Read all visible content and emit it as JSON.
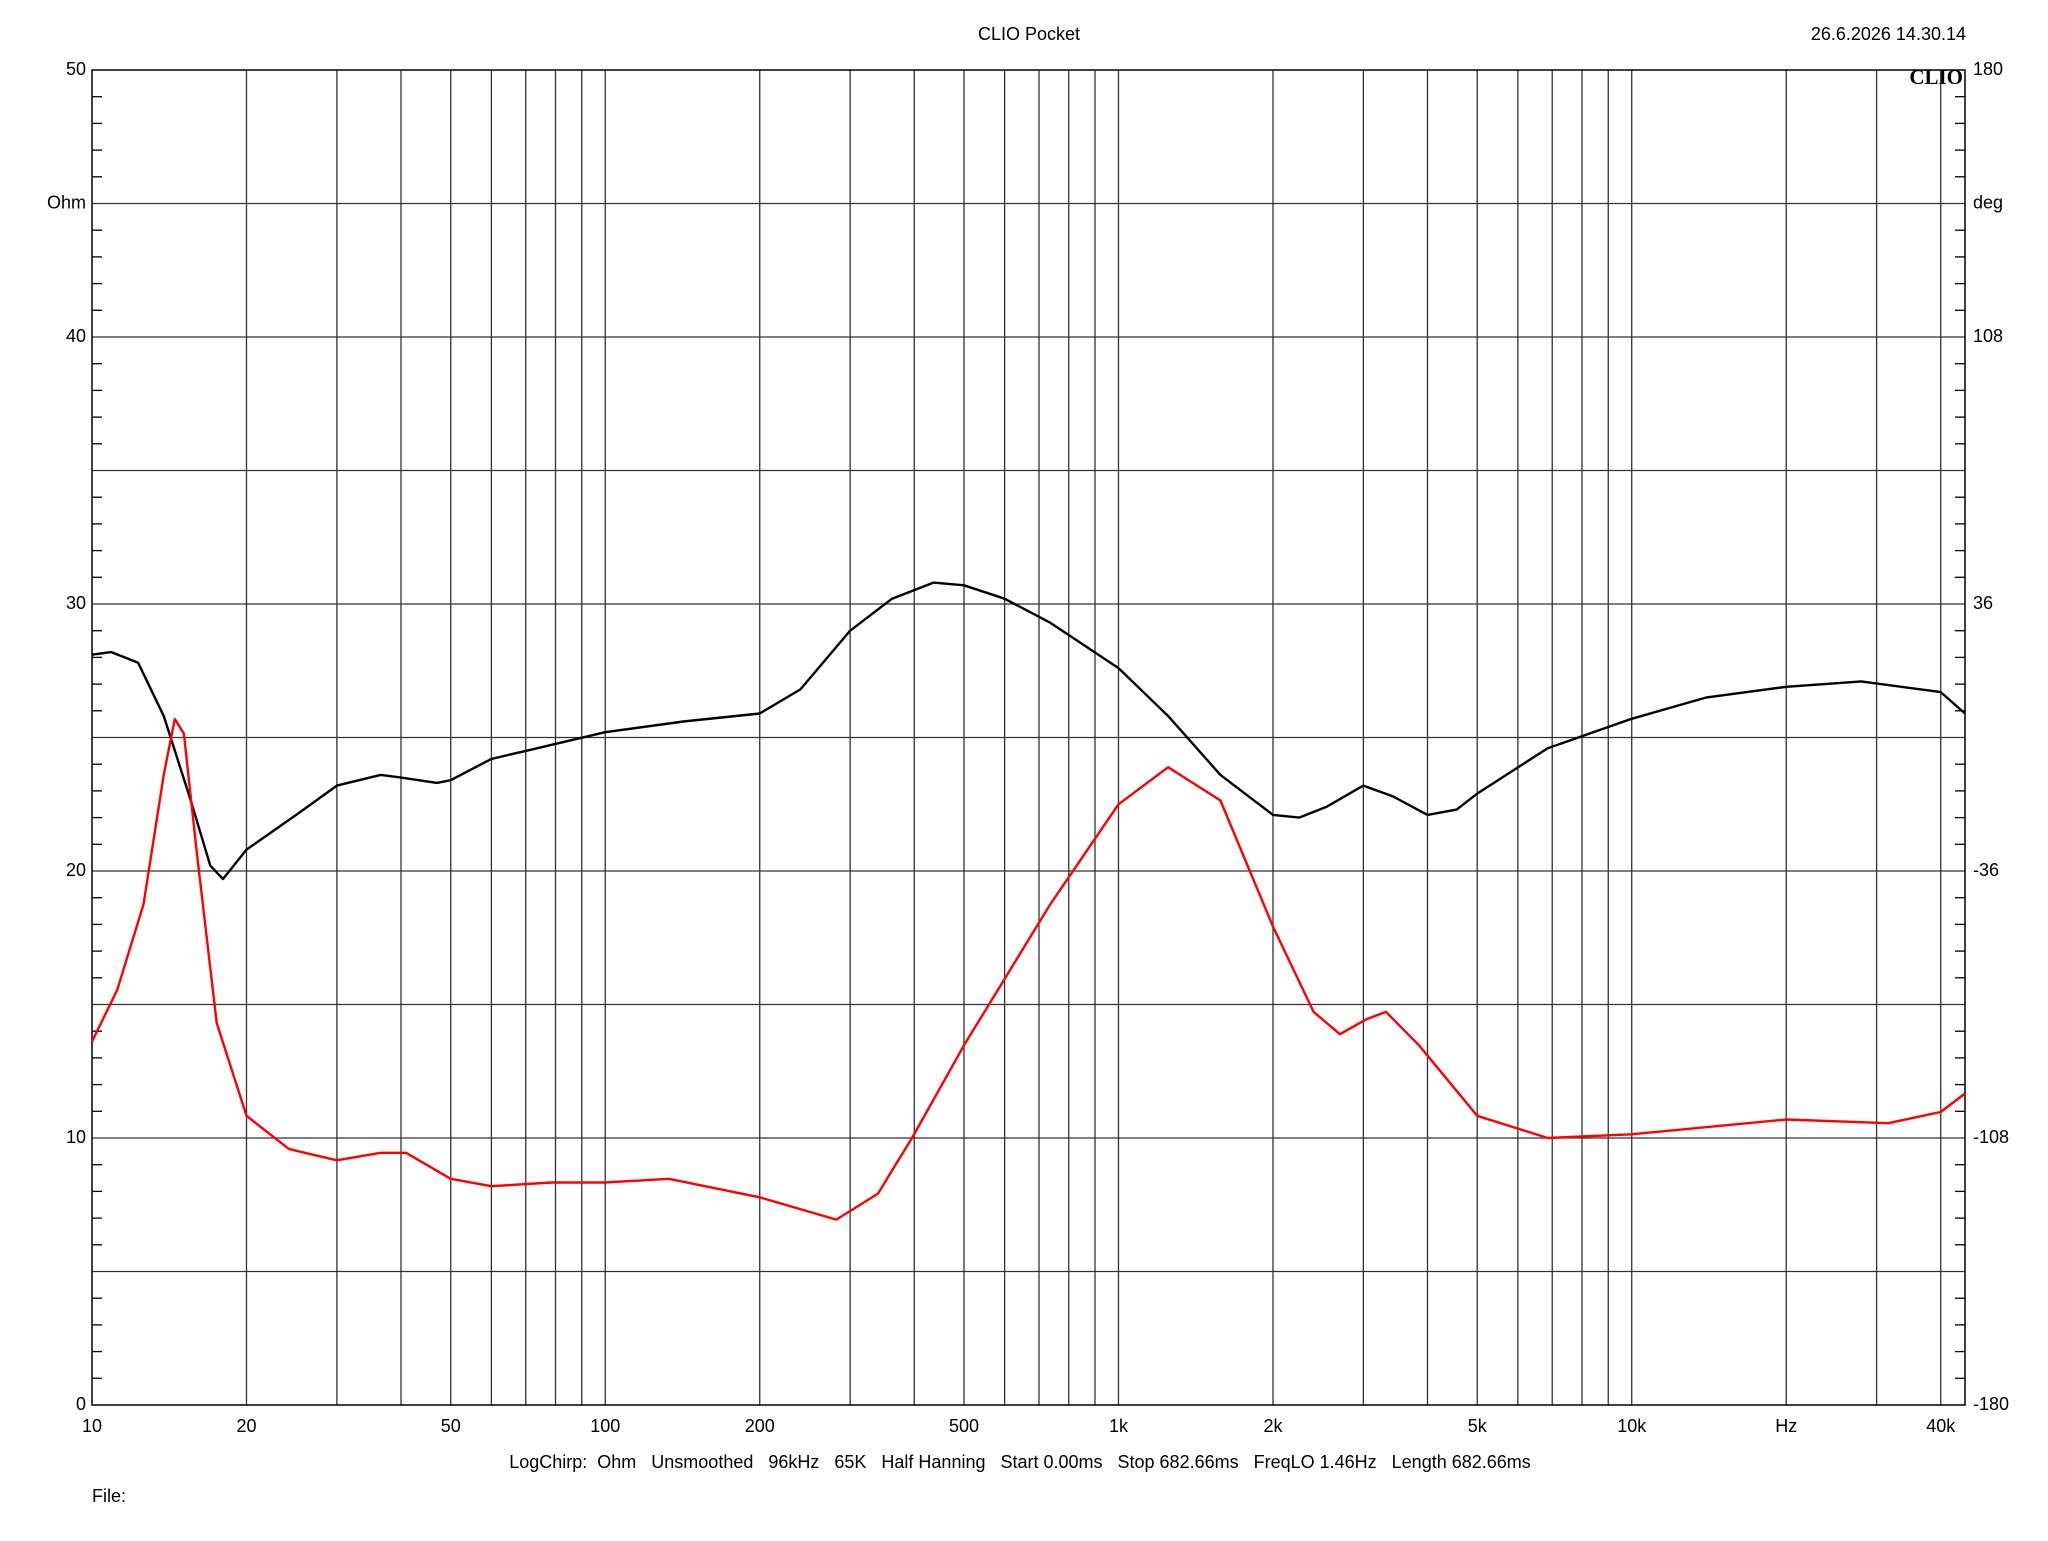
{
  "title": "CLIO Pocket",
  "timestamp": "26.6.2026 14.30.14",
  "logo": "CLIO",
  "footer": "LogChirp:  Ohm   Unsmoothed   96kHz   65K   Half Hanning   Start 0.00ms   Stop 682.66ms   FreqLO 1.46Hz   Length 682.66ms",
  "file_label": "File:",
  "chart_data": {
    "type": "line",
    "xscale": "log",
    "grid": true,
    "xlim": [
      10,
      44600
    ],
    "ylim": [
      0,
      50
    ],
    "y2lim": [
      -180,
      180
    ],
    "xticks": [
      10,
      20,
      50,
      100,
      200,
      500,
      {
        "value": 1000,
        "label": "1k"
      },
      {
        "value": 2000,
        "label": "2k"
      },
      {
        "value": 5000,
        "label": "5k"
      },
      {
        "value": 10000,
        "label": "10k"
      },
      {
        "value": 20000,
        "label": "Hz"
      },
      {
        "value": 40000,
        "label": "40k"
      }
    ],
    "xgrid": [
      20,
      30,
      40,
      50,
      60,
      70,
      80,
      90,
      100,
      200,
      300,
      400,
      500,
      600,
      700,
      800,
      900,
      1000,
      2000,
      3000,
      4000,
      5000,
      6000,
      7000,
      8000,
      9000,
      10000,
      20000,
      30000,
      40000
    ],
    "yticks": [
      0,
      10,
      20,
      30,
      40,
      {
        "value": 45,
        "label": "Ohm"
      },
      50
    ],
    "ygrid": [
      5,
      10,
      15,
      20,
      25,
      30,
      35,
      40,
      45
    ],
    "yminor": [
      1,
      2,
      3,
      4,
      6,
      7,
      8,
      9,
      11,
      12,
      13,
      14,
      16,
      17,
      18,
      19,
      21,
      22,
      23,
      24,
      26,
      27,
      28,
      29,
      31,
      32,
      33,
      34,
      36,
      37,
      38,
      39,
      41,
      42,
      43,
      44,
      46,
      47,
      48,
      49
    ],
    "y2ticks": [
      -180,
      -108,
      -36,
      36,
      108,
      {
        "value": 144,
        "label": "deg"
      },
      180
    ],
    "series": [
      {
        "name": "Impedance",
        "color": "#000000",
        "x": [
          10,
          10.9,
          12.3,
          13.8,
          15.6,
          17.0,
          18.0,
          20,
          25,
          30,
          36.5,
          40,
          47,
          50,
          60,
          70,
          100,
          142,
          200,
          240,
          300,
          362,
          436,
          500,
          600,
          736,
          1000,
          1250,
          1580,
          2000,
          2250,
          2540,
          3000,
          3420,
          4000,
          4560,
          5000,
          6860,
          10000,
          14000,
          20000,
          28000,
          40000,
          44600
        ],
        "values": [
          28.1,
          28.2,
          27.8,
          25.8,
          22.6,
          20.2,
          19.7,
          20.8,
          22.1,
          23.2,
          23.6,
          23.5,
          23.3,
          23.4,
          24.2,
          24.5,
          25.2,
          25.6,
          25.9,
          26.8,
          29.0,
          30.2,
          30.8,
          30.7,
          30.2,
          29.3,
          27.6,
          25.8,
          23.6,
          22.1,
          22.0,
          22.4,
          23.2,
          22.8,
          22.1,
          22.3,
          22.9,
          24.6,
          25.7,
          26.5,
          26.9,
          27.1,
          26.7,
          25.9
        ]
      },
      {
        "name": "Phase",
        "color": "#ff0000",
        "axis": "y2",
        "x": [
          10,
          11.2,
          12.6,
          13.8,
          14.5,
          15.1,
          16.0,
          17.5,
          20,
          24.2,
          30,
          36.5,
          40.9,
          50,
          60,
          78.6,
          100,
          133,
          200,
          282,
          340,
          396,
          500,
          736,
          1000,
          1250,
          1580,
          2000,
          2400,
          2700,
          3040,
          3320,
          3850,
          5000,
          6860,
          10000,
          20000,
          31600,
          40000,
          44600
        ],
        "values": [
          -82,
          -68,
          -45,
          -10,
          5,
          1,
          -31,
          -77,
          -102,
          -111,
          -114,
          -112,
          -112,
          -119,
          -121,
          -120,
          -120,
          -119,
          -124,
          -130,
          -123,
          -108,
          -83,
          -45,
          -18,
          -8,
          -17,
          -51,
          -74,
          -80,
          -76,
          -74,
          -83,
          -102,
          -108,
          -107,
          -103,
          -104,
          -101,
          -96
        ]
      }
    ]
  }
}
